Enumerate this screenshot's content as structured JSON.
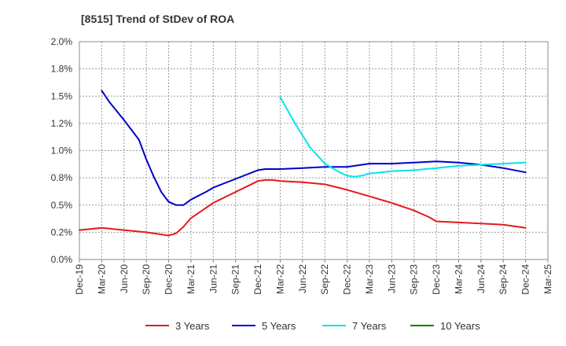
{
  "chart_data": {
    "type": "line",
    "title": "[8515]  Trend of StDev of ROA",
    "xlabel": "",
    "ylabel": "",
    "x_ticks": [
      "Dec-19",
      "Mar-20",
      "Jun-20",
      "Sep-20",
      "Dec-20",
      "Mar-21",
      "Jun-21",
      "Sep-21",
      "Dec-21",
      "Mar-22",
      "Jun-22",
      "Sep-22",
      "Dec-22",
      "Mar-23",
      "Jun-23",
      "Sep-23",
      "Dec-23",
      "Mar-24",
      "Jun-24",
      "Sep-24",
      "Dec-24",
      "Mar-25"
    ],
    "y_ticks": [
      "0.0%",
      "0.2%",
      "0.5%",
      "0.8%",
      "1.0%",
      "1.2%",
      "1.5%",
      "1.8%",
      "2.0%"
    ],
    "ylim": [
      0,
      2.0
    ],
    "grid": true,
    "legend_position": "bottom",
    "x_unit": "quarter",
    "series": [
      {
        "name": "3 Years",
        "color": "#e31a1c",
        "points": [
          [
            "Dec-19",
            0.27
          ],
          [
            "Mar-20",
            0.29
          ],
          [
            "Jun-20",
            0.27
          ],
          [
            "Sep-20",
            0.25
          ],
          [
            "Dec-20",
            0.22
          ],
          [
            "Jan-21",
            0.24
          ],
          [
            "Feb-21",
            0.3
          ],
          [
            "Mar-21",
            0.38
          ],
          [
            "Jun-21",
            0.52
          ],
          [
            "Sep-21",
            0.62
          ],
          [
            "Dec-21",
            0.72
          ],
          [
            "Jan-22",
            0.73
          ],
          [
            "Feb-22",
            0.73
          ],
          [
            "Mar-22",
            0.72
          ],
          [
            "Jun-22",
            0.71
          ],
          [
            "Sep-22",
            0.69
          ],
          [
            "Dec-22",
            0.64
          ],
          [
            "Mar-23",
            0.58
          ],
          [
            "Jun-23",
            0.52
          ],
          [
            "Sep-23",
            0.45
          ],
          [
            "Nov-23",
            0.39
          ],
          [
            "Dec-23",
            0.35
          ],
          [
            "Mar-24",
            0.34
          ],
          [
            "Jun-24",
            0.33
          ],
          [
            "Sep-24",
            0.32
          ],
          [
            "Dec-24",
            0.29
          ]
        ]
      },
      {
        "name": "5 Years",
        "color": "#0000cc",
        "points": [
          [
            "Mar-20",
            1.55
          ],
          [
            "Apr-20",
            1.45
          ],
          [
            "Jun-20",
            1.28
          ],
          [
            "Aug-20",
            1.1
          ],
          [
            "Sep-20",
            0.92
          ],
          [
            "Oct-20",
            0.76
          ],
          [
            "Nov-20",
            0.62
          ],
          [
            "Dec-20",
            0.53
          ],
          [
            "Jan-21",
            0.5
          ],
          [
            "Feb-21",
            0.5
          ],
          [
            "Mar-21",
            0.55
          ],
          [
            "May-21",
            0.62
          ],
          [
            "Jun-21",
            0.66
          ],
          [
            "Sep-21",
            0.74
          ],
          [
            "Dec-21",
            0.82
          ],
          [
            "Jan-22",
            0.83
          ],
          [
            "Mar-22",
            0.83
          ],
          [
            "Jun-22",
            0.84
          ],
          [
            "Sep-22",
            0.85
          ],
          [
            "Dec-22",
            0.85
          ],
          [
            "Mar-23",
            0.88
          ],
          [
            "Jun-23",
            0.88
          ],
          [
            "Sep-23",
            0.89
          ],
          [
            "Dec-23",
            0.9
          ],
          [
            "Mar-24",
            0.89
          ],
          [
            "Jun-24",
            0.87
          ],
          [
            "Sep-24",
            0.84
          ],
          [
            "Dec-24",
            0.8
          ]
        ]
      },
      {
        "name": "7 Years",
        "color": "#00e5ee",
        "points": [
          [
            "Mar-22",
            1.49
          ],
          [
            "May-22",
            1.25
          ],
          [
            "Jul-22",
            1.03
          ],
          [
            "Sep-22",
            0.88
          ],
          [
            "Nov-22",
            0.8
          ],
          [
            "Dec-22",
            0.77
          ],
          [
            "Jan-23",
            0.76
          ],
          [
            "Feb-23",
            0.77
          ],
          [
            "Mar-23",
            0.79
          ],
          [
            "Jun-23",
            0.81
          ],
          [
            "Sep-23",
            0.82
          ],
          [
            "Dec-23",
            0.84
          ],
          [
            "Mar-24",
            0.86
          ],
          [
            "Jun-24",
            0.87
          ],
          [
            "Sep-24",
            0.88
          ],
          [
            "Dec-24",
            0.89
          ]
        ]
      },
      {
        "name": "10 Years",
        "color": "#008000",
        "points": []
      }
    ]
  }
}
